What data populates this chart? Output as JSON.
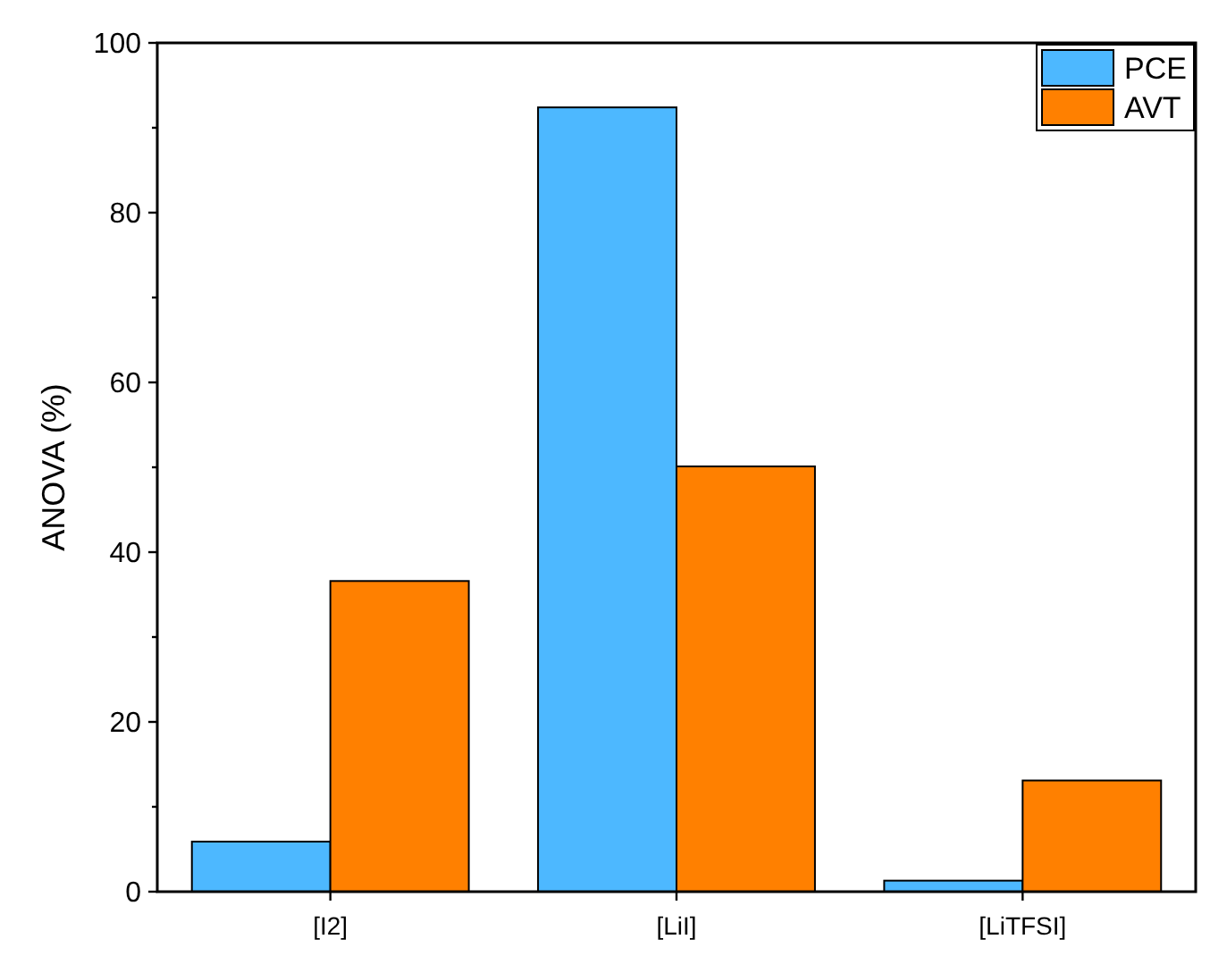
{
  "chart_data": {
    "type": "bar",
    "ylabel": "ANOVA (%)",
    "categories": [
      "[I2]",
      "[LiI]",
      "[LiTFSI]"
    ],
    "series": [
      {
        "name": "PCE",
        "color": "#4db8ff",
        "values": [
          5.9,
          92.4,
          1.3
        ]
      },
      {
        "name": "AVT",
        "color": "#ff8000",
        "values": [
          36.6,
          50.1,
          13.1
        ]
      }
    ],
    "ylim": [
      0,
      100
    ],
    "yticks": [
      0,
      {
        "value": 10,
        "label": null
      },
      20,
      {
        "value": 30,
        "label": null
      },
      40,
      {
        "value": 50,
        "label": null
      },
      60,
      {
        "value": 70,
        "label": null
      },
      80,
      {
        "value": 90,
        "label": null
      },
      100
    ],
    "grid": false,
    "legend": "top right"
  }
}
